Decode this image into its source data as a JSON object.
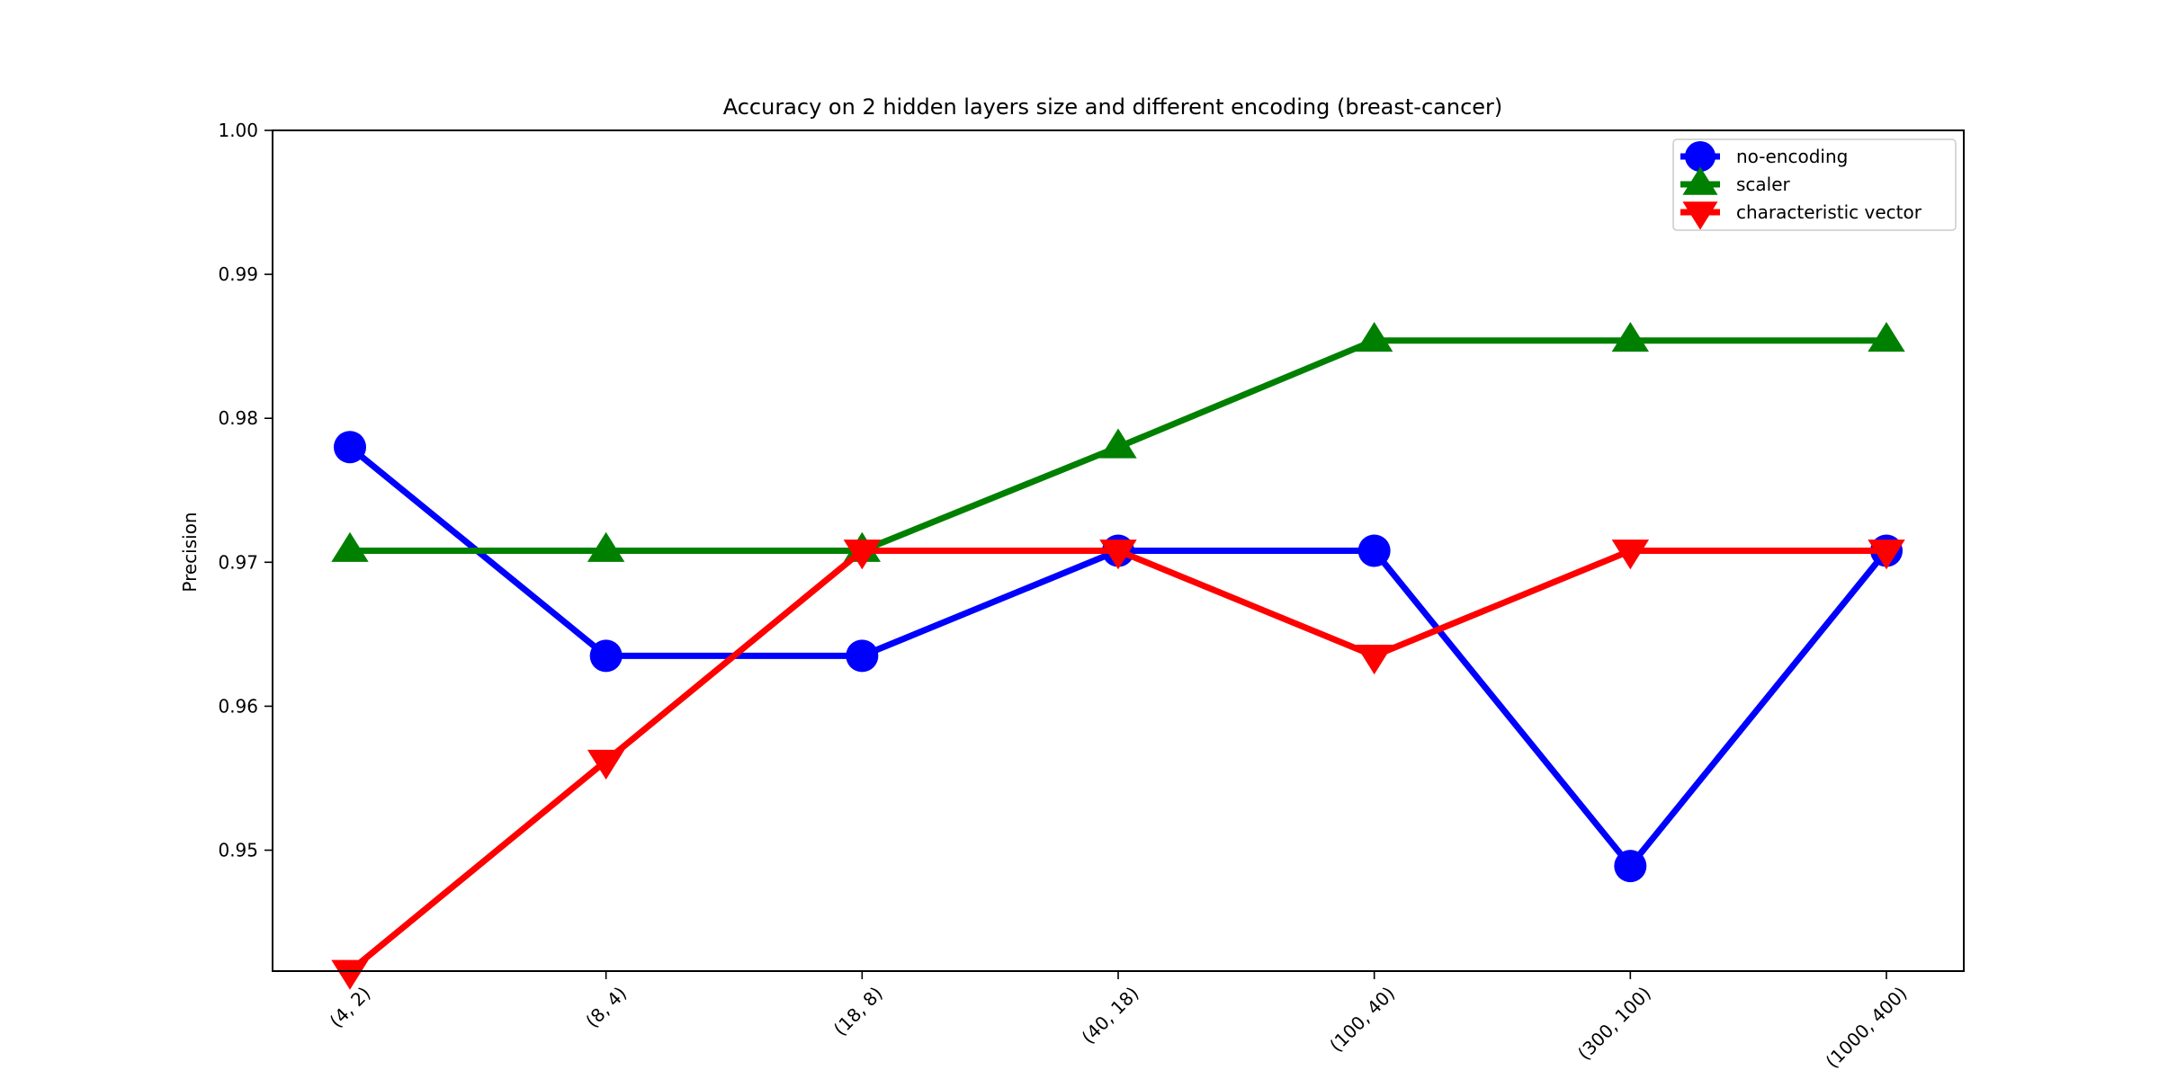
{
  "chart_data": {
    "type": "line",
    "title": "Accuracy on 2 hidden layers size and different encoding (breast-cancer)",
    "xlabel": "",
    "ylabel": "Precision",
    "categories": [
      "(4, 2)",
      "(8, 4)",
      "(18, 8)",
      "(40, 18)",
      "(100, 40)",
      "(300, 100)",
      "(1000, 400)"
    ],
    "ylim": [
      0.9416,
      1.0
    ],
    "yticks": [
      0.95,
      0.96,
      0.97,
      0.98,
      0.99,
      1.0
    ],
    "ytick_labels": [
      "0.95",
      "0.96",
      "0.97",
      "0.98",
      "0.99",
      "1.00"
    ],
    "grid": false,
    "legend_position": "top-right",
    "series": [
      {
        "name": "no-encoding",
        "color": "#0000ff",
        "marker": "circle",
        "values": [
          0.978,
          0.9635,
          0.9635,
          0.9708,
          0.9708,
          0.9489,
          0.9708
        ]
      },
      {
        "name": "scaler",
        "color": "#008000",
        "marker": "triangle-up",
        "values": [
          0.9708,
          0.9708,
          0.9708,
          0.978,
          0.9854,
          0.9854,
          0.9854
        ]
      },
      {
        "name": "characteristic vector",
        "color": "#ff0000",
        "marker": "triangle-down",
        "values": [
          0.9416,
          0.9562,
          0.9708,
          0.9708,
          0.9635,
          0.9708,
          0.9708
        ]
      }
    ]
  }
}
